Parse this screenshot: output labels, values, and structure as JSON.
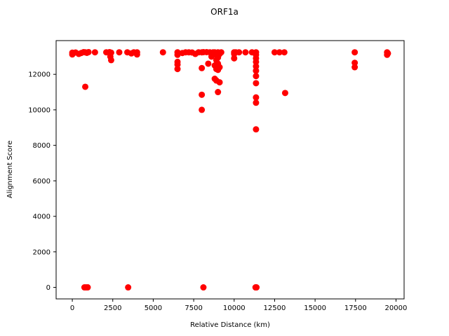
{
  "chart_data": {
    "type": "scatter",
    "title": "ORF1a",
    "xlabel": "Relative Distance (km)",
    "ylabel": "Alignment Score",
    "xlim": [
      -1000,
      20500
    ],
    "ylim": [
      -650,
      13900
    ],
    "xticks": [
      0,
      2500,
      5000,
      7500,
      10000,
      12500,
      15000,
      17500,
      20000
    ],
    "yticks": [
      0,
      2000,
      4000,
      6000,
      8000,
      10000,
      12000
    ],
    "xtick_labels": [
      "0",
      "2500",
      "5000",
      "7500",
      "10000",
      "12500",
      "15000",
      "17500",
      "20000"
    ],
    "ytick_labels": [
      "0",
      "2000",
      "4000",
      "6000",
      "8000",
      "10000",
      "12000"
    ],
    "grid": false,
    "marker_color": "#ff0000",
    "points": [
      {
        "x": 0,
        "y": 13220
      },
      {
        "x": 0,
        "y": 13120
      },
      {
        "x": 200,
        "y": 13230
      },
      {
        "x": 400,
        "y": 13150
      },
      {
        "x": 550,
        "y": 13200
      },
      {
        "x": 700,
        "y": 13250
      },
      {
        "x": 800,
        "y": 13240
      },
      {
        "x": 900,
        "y": 13210
      },
      {
        "x": 1000,
        "y": 13250
      },
      {
        "x": 1400,
        "y": 13240
      },
      {
        "x": 2100,
        "y": 13240
      },
      {
        "x": 2300,
        "y": 13250
      },
      {
        "x": 2350,
        "y": 13000
      },
      {
        "x": 2400,
        "y": 13220
      },
      {
        "x": 2400,
        "y": 12800
      },
      {
        "x": 2900,
        "y": 13240
      },
      {
        "x": 3400,
        "y": 13240
      },
      {
        "x": 3650,
        "y": 13180
      },
      {
        "x": 3800,
        "y": 13240
      },
      {
        "x": 4000,
        "y": 13120
      },
      {
        "x": 4000,
        "y": 13240
      },
      {
        "x": 5600,
        "y": 13240
      },
      {
        "x": 6500,
        "y": 13240
      },
      {
        "x": 6500,
        "y": 13100
      },
      {
        "x": 6500,
        "y": 12700
      },
      {
        "x": 6500,
        "y": 12550
      },
      {
        "x": 6500,
        "y": 12300
      },
      {
        "x": 6800,
        "y": 13200
      },
      {
        "x": 7000,
        "y": 13240
      },
      {
        "x": 7200,
        "y": 13240
      },
      {
        "x": 7400,
        "y": 13230
      },
      {
        "x": 7600,
        "y": 13150
      },
      {
        "x": 7800,
        "y": 13240
      },
      {
        "x": 8000,
        "y": 13240
      },
      {
        "x": 8000,
        "y": 12350
      },
      {
        "x": 8000,
        "y": 10850
      },
      {
        "x": 8000,
        "y": 10000
      },
      {
        "x": 8100,
        "y": 13250
      },
      {
        "x": 8300,
        "y": 13250
      },
      {
        "x": 8400,
        "y": 12600
      },
      {
        "x": 8500,
        "y": 13240
      },
      {
        "x": 8600,
        "y": 13000
      },
      {
        "x": 8700,
        "y": 13240
      },
      {
        "x": 8800,
        "y": 13240
      },
      {
        "x": 8800,
        "y": 12500
      },
      {
        "x": 8800,
        "y": 11750
      },
      {
        "x": 8900,
        "y": 13100
      },
      {
        "x": 8900,
        "y": 12800
      },
      {
        "x": 8900,
        "y": 12300
      },
      {
        "x": 8900,
        "y": 11650
      },
      {
        "x": 9000,
        "y": 13240
      },
      {
        "x": 9000,
        "y": 12950
      },
      {
        "x": 9000,
        "y": 12600
      },
      {
        "x": 9000,
        "y": 12250
      },
      {
        "x": 9000,
        "y": 11000
      },
      {
        "x": 9100,
        "y": 13150
      },
      {
        "x": 9100,
        "y": 12400
      },
      {
        "x": 9100,
        "y": 11550
      },
      {
        "x": 9200,
        "y": 13240
      },
      {
        "x": 10000,
        "y": 13240
      },
      {
        "x": 10000,
        "y": 13150
      },
      {
        "x": 10000,
        "y": 12900
      },
      {
        "x": 10100,
        "y": 13240
      },
      {
        "x": 10300,
        "y": 13240
      },
      {
        "x": 10700,
        "y": 13240
      },
      {
        "x": 11100,
        "y": 13240
      },
      {
        "x": 11350,
        "y": 13240
      },
      {
        "x": 11350,
        "y": 13100
      },
      {
        "x": 11350,
        "y": 12900
      },
      {
        "x": 11350,
        "y": 12700
      },
      {
        "x": 11350,
        "y": 12450
      },
      {
        "x": 11350,
        "y": 12200
      },
      {
        "x": 11350,
        "y": 11900
      },
      {
        "x": 11350,
        "y": 11500
      },
      {
        "x": 11350,
        "y": 10700
      },
      {
        "x": 11350,
        "y": 10400
      },
      {
        "x": 11350,
        "y": 8900
      },
      {
        "x": 12500,
        "y": 13240
      },
      {
        "x": 12800,
        "y": 13240
      },
      {
        "x": 13100,
        "y": 13240
      },
      {
        "x": 13150,
        "y": 10950
      },
      {
        "x": 17450,
        "y": 13240
      },
      {
        "x": 17450,
        "y": 12650
      },
      {
        "x": 17450,
        "y": 12400
      },
      {
        "x": 19450,
        "y": 13240
      },
      {
        "x": 19450,
        "y": 13100
      },
      {
        "x": 19500,
        "y": 13180
      },
      {
        "x": 800,
        "y": 11300
      },
      {
        "x": 750,
        "y": 0
      },
      {
        "x": 850,
        "y": 0
      },
      {
        "x": 950,
        "y": 0
      },
      {
        "x": 3450,
        "y": 0
      },
      {
        "x": 8100,
        "y": 0
      },
      {
        "x": 11350,
        "y": 0
      },
      {
        "x": 11380,
        "y": 0
      },
      {
        "x": 11320,
        "y": 0
      }
    ]
  }
}
